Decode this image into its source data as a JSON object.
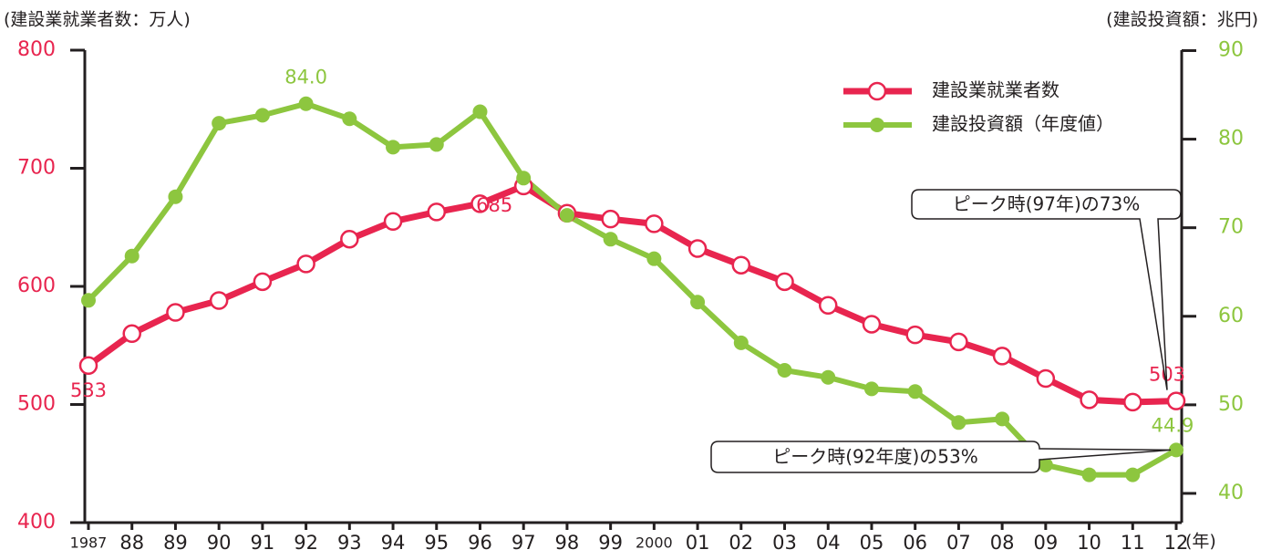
{
  "chart_data": {
    "type": "line",
    "y_axis_label": "(建設業就業者数：万人)",
    "y2_axis_label": "(建設投資額：兆円)",
    "x_axis_label": "(年)",
    "categories": [
      "1987",
      "88",
      "89",
      "90",
      "91",
      "92",
      "93",
      "94",
      "95",
      "96",
      "97",
      "98",
      "99",
      "2000",
      "01",
      "02",
      "03",
      "04",
      "05",
      "06",
      "07",
      "08",
      "09",
      "10",
      "11",
      "12"
    ],
    "series": [
      {
        "name": "建設業就業者数",
        "color": "#e8254f",
        "values": [
          533,
          560,
          578,
          588,
          604,
          619,
          640,
          655,
          663,
          670,
          685,
          662,
          657,
          653,
          632,
          618,
          604,
          584,
          568,
          559,
          553,
          541,
          522,
          504,
          502,
          503
        ],
        "value_labels": [
          "533",
          null,
          null,
          null,
          null,
          null,
          null,
          null,
          null,
          null,
          "685",
          null,
          null,
          null,
          null,
          null,
          null,
          null,
          null,
          null,
          null,
          null,
          null,
          null,
          null,
          "503"
        ]
      },
      {
        "name": "建設投資額（年度値）",
        "color": "#8dc63f",
        "axis": "y2",
        "values": [
          61.8,
          66.8,
          73.5,
          81.8,
          82.7,
          84.0,
          82.3,
          79.1,
          79.4,
          83.1,
          75.6,
          71.4,
          68.7,
          66.5,
          61.6,
          57.0,
          53.9,
          53.1,
          51.8,
          51.5,
          48.0,
          48.4,
          43.2,
          42.1,
          42.1,
          44.9
        ],
        "value_labels": [
          null,
          null,
          null,
          null,
          null,
          "84.0",
          null,
          null,
          null,
          null,
          null,
          null,
          null,
          null,
          null,
          null,
          null,
          null,
          null,
          null,
          null,
          null,
          null,
          null,
          null,
          "44.9"
        ]
      }
    ],
    "ylim": [
      400,
      800
    ],
    "yticks": [
      400,
      500,
      600,
      700,
      800
    ],
    "y2lim": [
      36.7,
      90.05
    ],
    "y2ticks": [
      40,
      50,
      60,
      70,
      80,
      90
    ],
    "annotations": [
      "ピーク時(97年)の73%",
      "ピーク時(92年度)の53%"
    ]
  }
}
